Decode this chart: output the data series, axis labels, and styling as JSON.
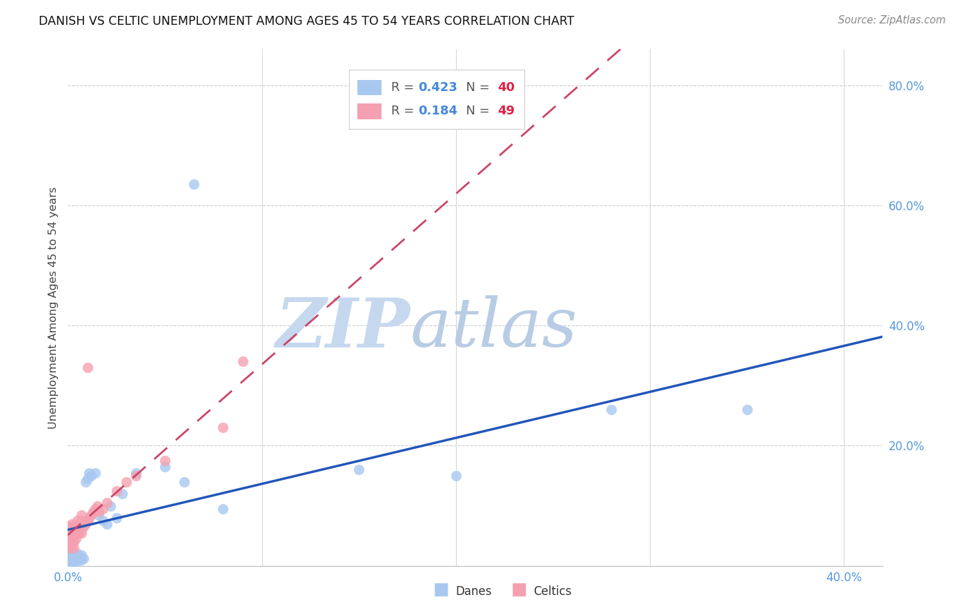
{
  "title": "DANISH VS CELTIC UNEMPLOYMENT AMONG AGES 45 TO 54 YEARS CORRELATION CHART",
  "source": "Source: ZipAtlas.com",
  "ylabel": "Unemployment Among Ages 45 to 54 years",
  "danes_R": 0.423,
  "danes_N": 40,
  "celtics_R": 0.184,
  "celtics_N": 49,
  "danes_color": "#a8c8f0",
  "celtics_color": "#f5a0b0",
  "danes_line_color": "#2255bb",
  "celtics_line_color": "#cc4466",
  "axis_label_color": "#5599dd",
  "grid_color": "#cccccc",
  "watermark_zip_color": "#c8d8ee",
  "watermark_atlas_color": "#b0c8e8",
  "legend_r_color": "#4488dd",
  "legend_n_color": "#dd2244",
  "xlim": [
    0.0,
    0.42
  ],
  "ylim": [
    0.0,
    0.86
  ],
  "xtick_positions": [
    0.0,
    0.1,
    0.2,
    0.3,
    0.4
  ],
  "xtick_labels": [
    "0.0%",
    "",
    "",
    "",
    "40.0%"
  ],
  "ytick_positions": [
    0.0,
    0.2,
    0.4,
    0.6,
    0.8
  ],
  "ytick_labels": [
    "",
    "20.0%",
    "40.0%",
    "60.0%",
    "80.0%"
  ],
  "danes_x": [
    0.0005,
    0.001,
    0.001,
    0.0015,
    0.002,
    0.002,
    0.002,
    0.002,
    0.003,
    0.003,
    0.003,
    0.004,
    0.004,
    0.005,
    0.005,
    0.005,
    0.006,
    0.007,
    0.007,
    0.008,
    0.009,
    0.01,
    0.011,
    0.012,
    0.014,
    0.016,
    0.018,
    0.02,
    0.022,
    0.025,
    0.028,
    0.035,
    0.05,
    0.06,
    0.065,
    0.08,
    0.15,
    0.2,
    0.28,
    0.35
  ],
  "danes_y": [
    0.008,
    0.01,
    0.015,
    0.008,
    0.005,
    0.012,
    0.018,
    0.025,
    0.008,
    0.015,
    0.022,
    0.01,
    0.018,
    0.008,
    0.012,
    0.02,
    0.015,
    0.01,
    0.018,
    0.012,
    0.14,
    0.145,
    0.155,
    0.15,
    0.155,
    0.085,
    0.075,
    0.07,
    0.1,
    0.08,
    0.12,
    0.155,
    0.165,
    0.14,
    0.635,
    0.095,
    0.16,
    0.15,
    0.26,
    0.26
  ],
  "celtics_x": [
    0.0003,
    0.0005,
    0.0007,
    0.001,
    0.001,
    0.001,
    0.001,
    0.001,
    0.0015,
    0.002,
    0.002,
    0.002,
    0.002,
    0.002,
    0.003,
    0.003,
    0.003,
    0.003,
    0.003,
    0.004,
    0.004,
    0.004,
    0.005,
    0.005,
    0.005,
    0.006,
    0.006,
    0.007,
    0.007,
    0.007,
    0.008,
    0.009,
    0.01,
    0.011,
    0.012,
    0.013,
    0.014,
    0.015,
    0.016,
    0.018,
    0.02,
    0.025,
    0.03,
    0.035,
    0.05,
    0.08,
    0.09,
    0.01,
    0.007
  ],
  "celtics_y": [
    0.03,
    0.04,
    0.035,
    0.045,
    0.05,
    0.055,
    0.06,
    0.065,
    0.04,
    0.035,
    0.045,
    0.05,
    0.06,
    0.07,
    0.03,
    0.04,
    0.05,
    0.055,
    0.065,
    0.045,
    0.055,
    0.065,
    0.055,
    0.065,
    0.075,
    0.055,
    0.065,
    0.055,
    0.065,
    0.075,
    0.065,
    0.07,
    0.075,
    0.08,
    0.085,
    0.09,
    0.095,
    0.1,
    0.09,
    0.095,
    0.105,
    0.125,
    0.14,
    0.15,
    0.175,
    0.23,
    0.34,
    0.33,
    0.085
  ]
}
